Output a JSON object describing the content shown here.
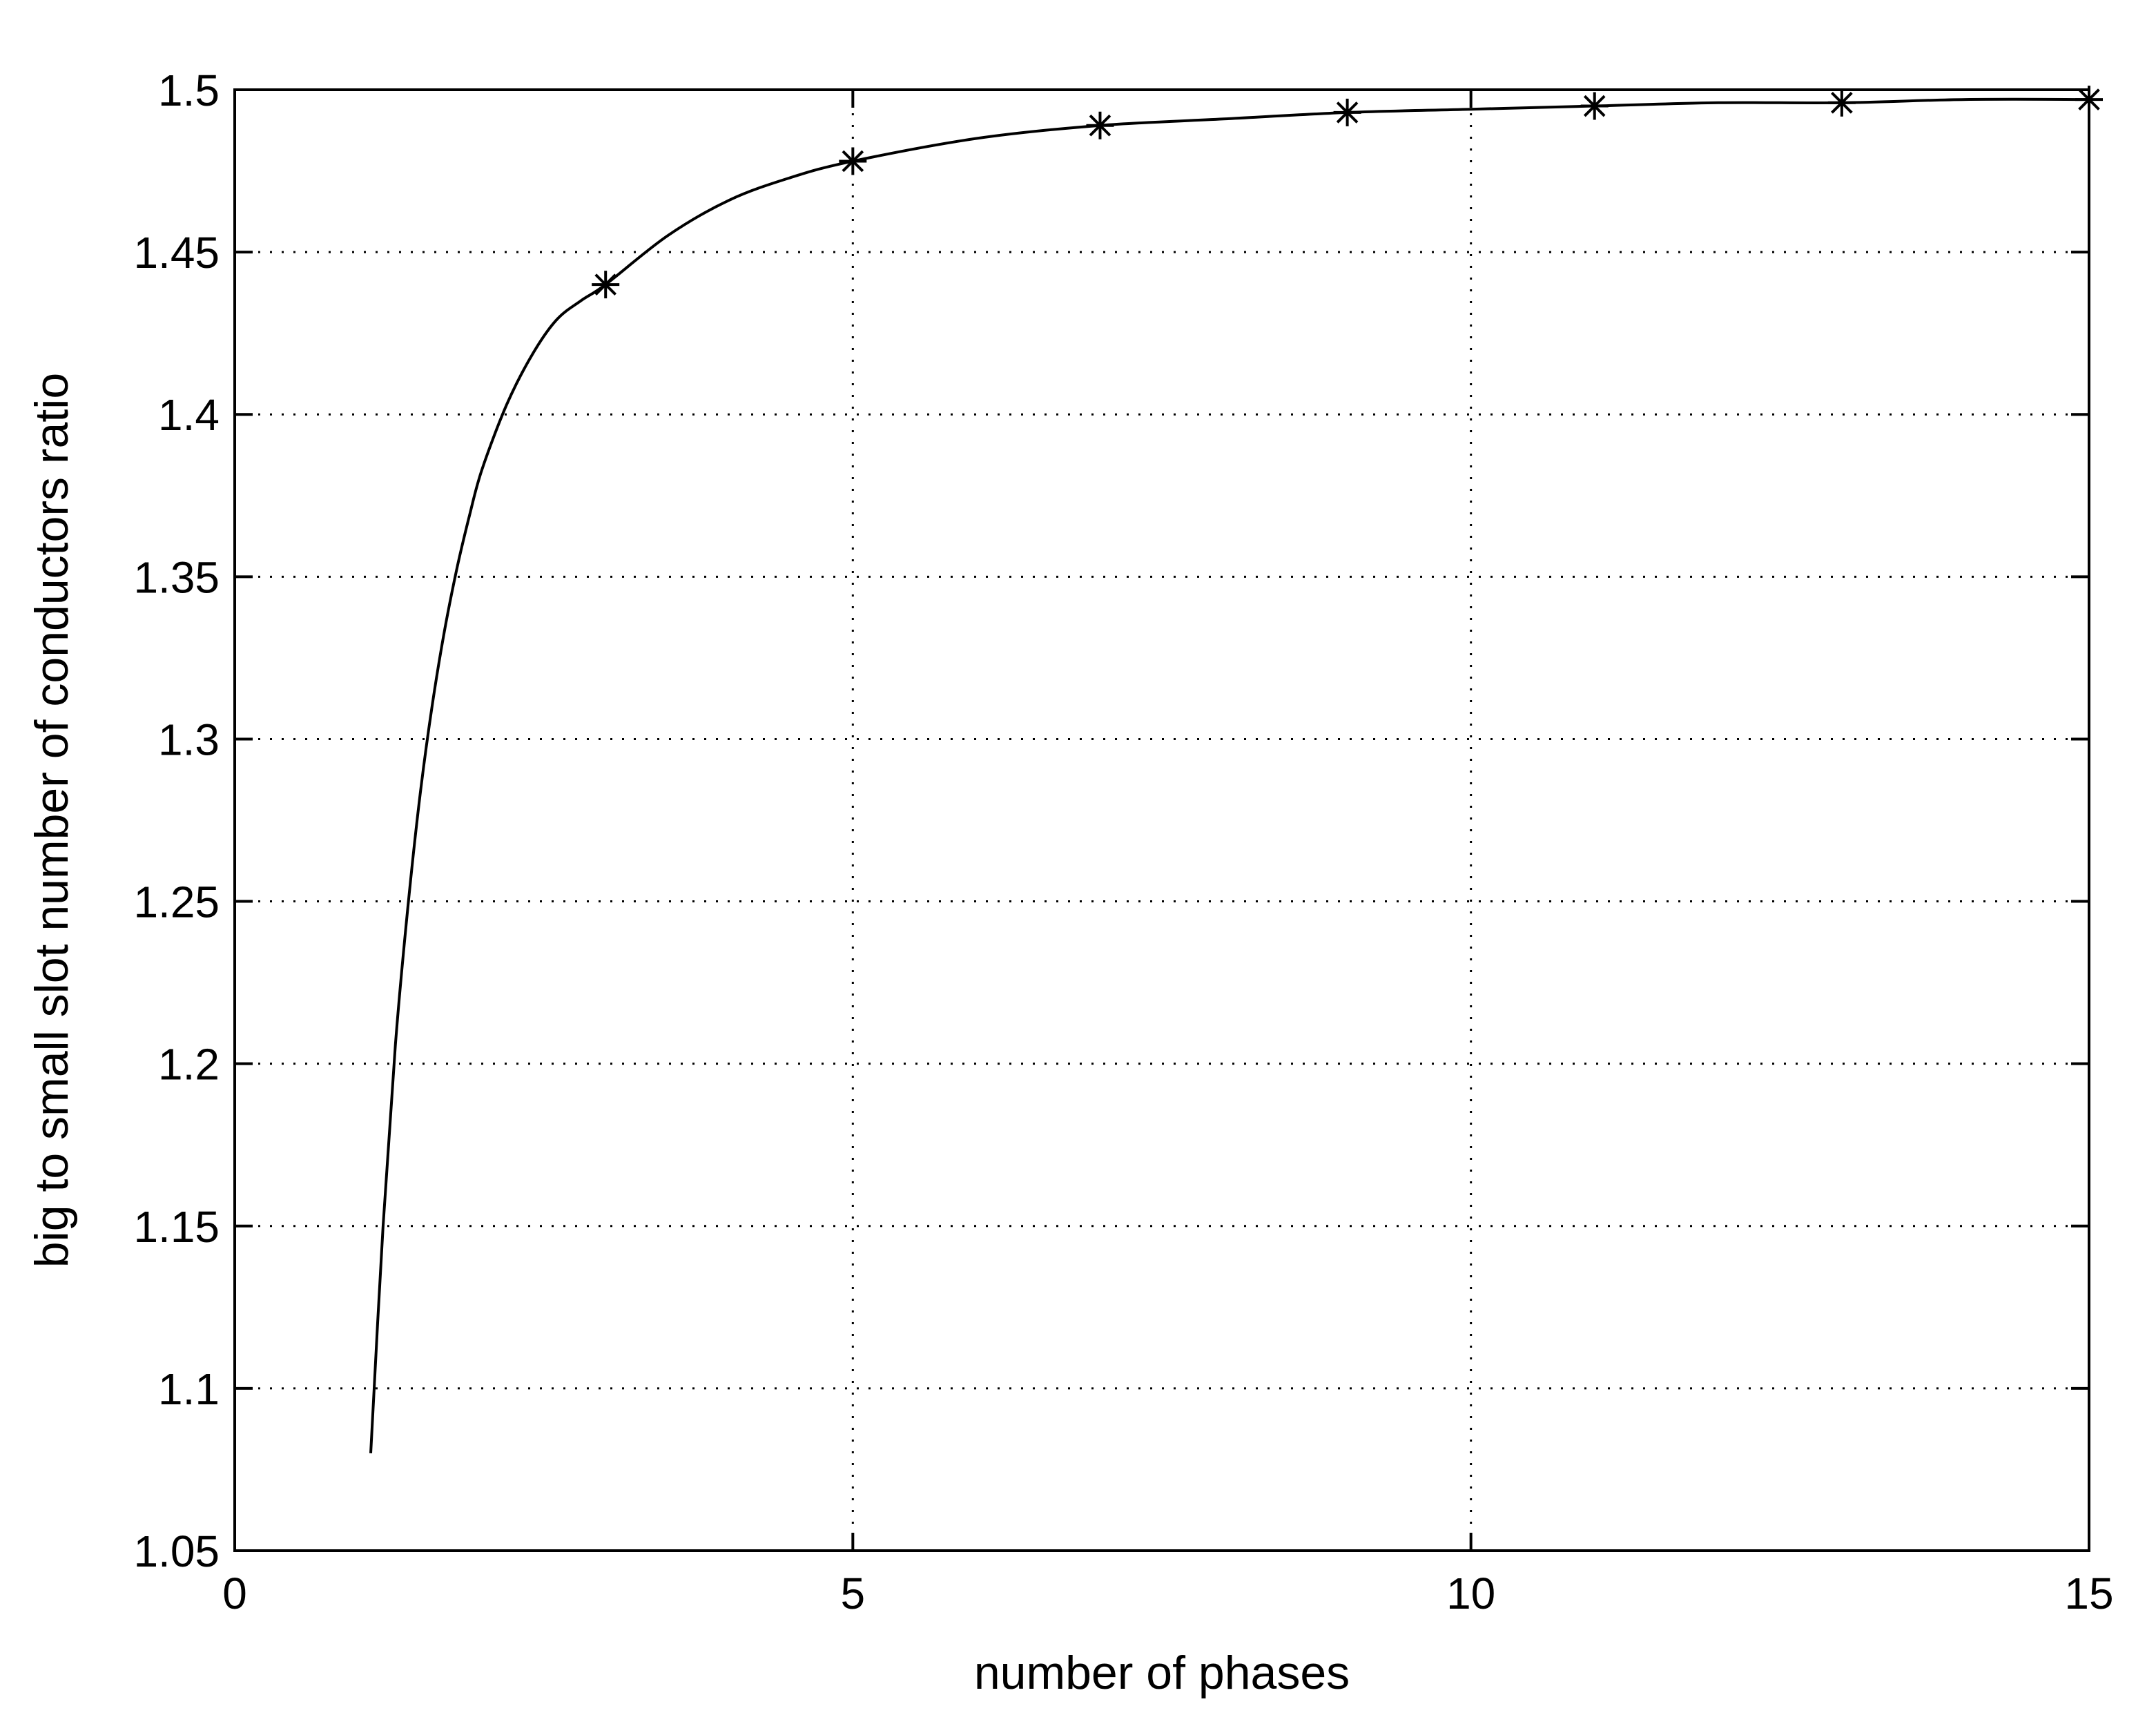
{
  "chart_data": {
    "type": "line",
    "title": "",
    "xlabel": "number of phases",
    "ylabel": "big to small slot number of conductors ratio",
    "xlim": [
      0,
      15
    ],
    "ylim": [
      1.05,
      1.5
    ],
    "xticks": [
      0,
      5,
      10,
      15
    ],
    "yticks": [
      1.05,
      1.1,
      1.15,
      1.2,
      1.25,
      1.3,
      1.35,
      1.4,
      1.45,
      1.5
    ],
    "xtick_labels": [
      "0",
      "5",
      "10",
      "15"
    ],
    "ytick_labels": [
      "1.05",
      "1.1",
      "1.15",
      "1.2",
      "1.25",
      "1.3",
      "1.35",
      "1.4",
      "1.45",
      "1.5"
    ],
    "grid": true,
    "legend": "none",
    "series": [
      {
        "style": "solid-line",
        "color": "#000000",
        "x": [
          1.1,
          1.2,
          1.3,
          1.4,
          1.5,
          1.6,
          1.7,
          1.8,
          1.9,
          2.0,
          2.2,
          2.4,
          2.6,
          2.8,
          3.0,
          3.5,
          4.0,
          4.5,
          5.0,
          6.0,
          7.0,
          8.0,
          9.0,
          10.0,
          11.0,
          12.0,
          13.0,
          14.0,
          15.0
        ],
        "y": [
          1.08,
          1.15,
          1.206,
          1.248,
          1.283,
          1.311,
          1.334,
          1.353,
          1.369,
          1.383,
          1.403,
          1.418,
          1.429,
          1.435,
          1.44,
          1.455,
          1.466,
          1.473,
          1.478,
          1.485,
          1.489,
          1.491,
          1.493,
          1.494,
          1.495,
          1.496,
          1.496,
          1.497,
          1.497
        ]
      },
      {
        "style": "asterisk-markers",
        "color": "#000000",
        "x": [
          3,
          5,
          7,
          9,
          11,
          13,
          15
        ],
        "y": [
          1.44,
          1.478,
          1.489,
          1.493,
          1.495,
          1.496,
          1.497
        ]
      }
    ]
  }
}
